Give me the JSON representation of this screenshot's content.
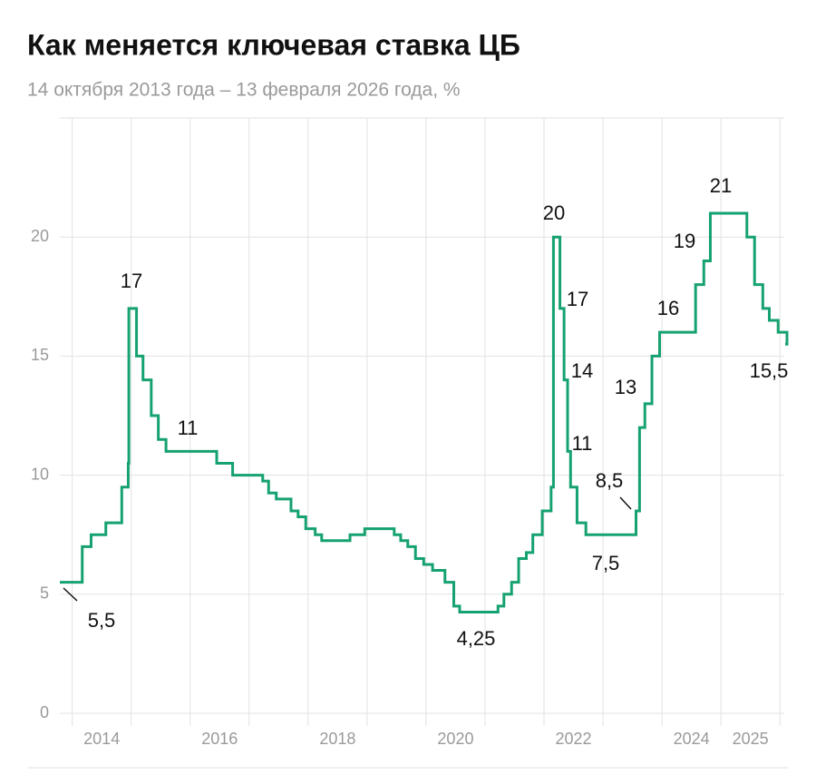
{
  "chart_data": {
    "type": "step",
    "title": "Как меняется ключевая ставка ЦБ",
    "subtitle": "14 октября 2013 года – 13 февраля 2026 года, %",
    "x": [
      2013.79,
      2014.17,
      2014.32,
      2014.57,
      2014.84,
      2014.95,
      2014.96,
      2015.09,
      2015.2,
      2015.34,
      2015.46,
      2015.59,
      2016.45,
      2016.72,
      2017.23,
      2017.33,
      2017.46,
      2017.71,
      2017.83,
      2017.96,
      2018.12,
      2018.23,
      2018.71,
      2018.96,
      2019.46,
      2019.57,
      2019.69,
      2019.82,
      2019.96,
      2020.11,
      2020.32,
      2020.47,
      2020.57,
      2021.22,
      2021.32,
      2021.45,
      2021.57,
      2021.7,
      2021.81,
      2021.97,
      2022.12,
      2022.16,
      2022.27,
      2022.34,
      2022.4,
      2022.45,
      2022.56,
      2022.71,
      2023.56,
      2023.62,
      2023.71,
      2023.83,
      2023.96,
      2024.57,
      2024.71,
      2024.82,
      2025.44,
      2025.57,
      2025.71,
      2025.82,
      2025.97,
      2026.12
    ],
    "values": [
      5.5,
      7,
      7.5,
      8,
      9.5,
      10.5,
      17,
      15,
      14,
      12.5,
      11.5,
      11,
      10.5,
      10,
      9.75,
      9.25,
      9,
      8.5,
      8.25,
      7.75,
      7.5,
      7.25,
      7.5,
      7.75,
      7.5,
      7.25,
      7,
      6.5,
      6.25,
      6,
      5.5,
      4.5,
      4.25,
      4.5,
      5,
      5.5,
      6.5,
      6.75,
      7.5,
      8.5,
      9.5,
      20,
      17,
      14,
      11,
      9.5,
      8,
      7.5,
      8.5,
      12,
      13,
      15,
      16,
      18,
      19,
      21,
      20,
      18,
      17,
      16.5,
      16,
      15.5
    ],
    "value_labels": [
      "5,5",
      null,
      null,
      null,
      null,
      null,
      "17",
      null,
      null,
      null,
      null,
      "11",
      null,
      null,
      null,
      null,
      null,
      null,
      null,
      null,
      null,
      null,
      null,
      null,
      null,
      null,
      null,
      null,
      null,
      null,
      null,
      null,
      "4,25",
      null,
      null,
      null,
      null,
      null,
      null,
      null,
      null,
      "20",
      "17",
      "14",
      "11",
      null,
      null,
      "7,5",
      "8,5",
      null,
      "13",
      null,
      "16",
      null,
      "19",
      "21",
      null,
      null,
      null,
      null,
      null,
      "15,5"
    ],
    "color": "#16a270",
    "xlim": [
      2013.79,
      2026.12
    ],
    "xticks": [
      {
        "value": 2014.5,
        "label": "2014"
      },
      {
        "value": 2016.5,
        "label": "2016"
      },
      {
        "value": 2018.5,
        "label": "2018"
      },
      {
        "value": 2020.5,
        "label": "2020"
      },
      {
        "value": 2022.5,
        "label": "2022"
      },
      {
        "value": 2024.5,
        "label": "2024"
      },
      {
        "value": 2025.5,
        "label": "2025"
      }
    ],
    "xgrid": [
      2014,
      2015,
      2016,
      2017,
      2018,
      2019,
      2020,
      2021,
      2022,
      2023,
      2024,
      2025,
      2026
    ],
    "ylim": [
      0,
      25
    ],
    "yticks": [
      0,
      5,
      10,
      15,
      20
    ],
    "grid": true
  }
}
